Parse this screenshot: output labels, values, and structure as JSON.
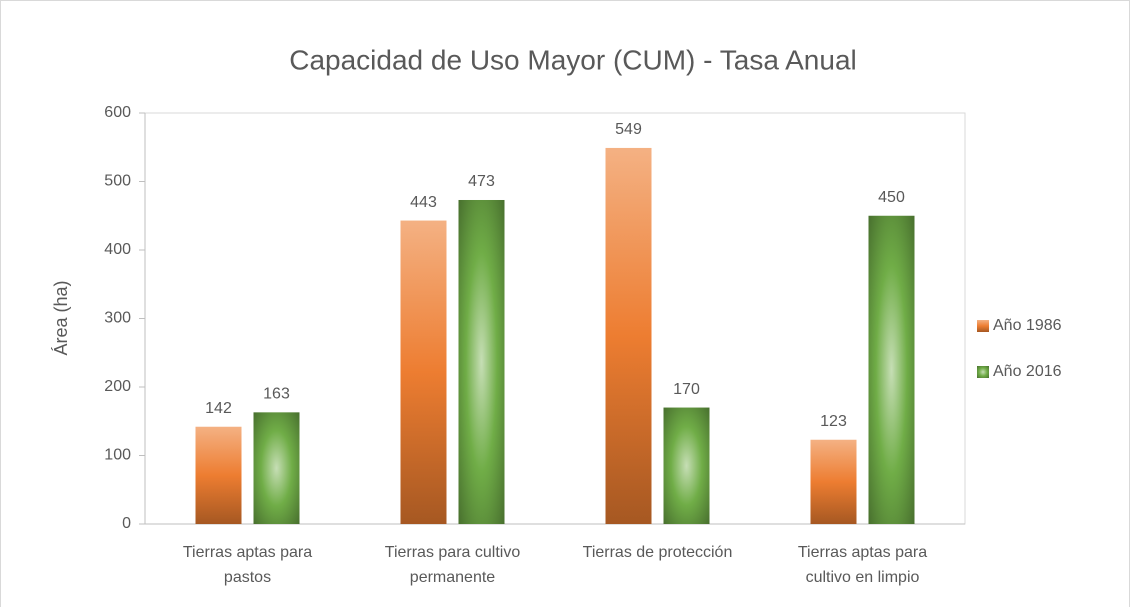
{
  "chart_data": {
    "type": "bar",
    "title": "Capacidad de Uso Mayor (CUM) - Tasa Anual",
    "y_label": "Área (ha)",
    "categories": [
      "Tierras aptas para pastos",
      "Tierras para cultivo permanente",
      "Tierras de protección",
      "Tierras aptas para cultivo en limpio"
    ],
    "series": [
      {
        "name": "Año 1986",
        "color": "#ed7d31",
        "values": [
          142,
          443,
          549,
          123
        ]
      },
      {
        "name": "Año 2016",
        "color": "#70ad47",
        "values": [
          163,
          473,
          170,
          450
        ]
      }
    ],
    "ylim": [
      0,
      600
    ],
    "yticks": [
      0,
      100,
      200,
      300,
      400,
      500,
      600
    ],
    "grid": false,
    "legend": "right"
  }
}
